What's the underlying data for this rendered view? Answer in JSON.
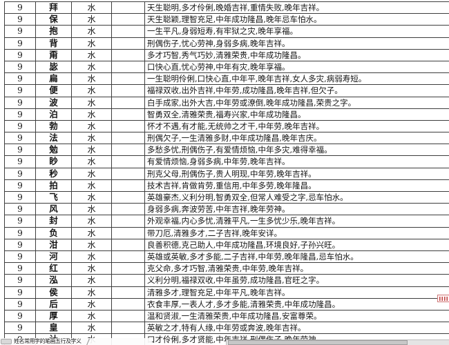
{
  "sheet": {
    "rows": [
      {
        "strokes": "9",
        "character": "拜",
        "element": "水",
        "meaning": "天生聪明,多才伶俐,晚婚吉祥,重情失败,晚年吉祥。"
      },
      {
        "strokes": "9",
        "character": "保",
        "element": "水",
        "meaning": "天生聪颖,理智充足,中年成功隆昌,晚年忌车怕水。"
      },
      {
        "strokes": "9",
        "character": "抱",
        "element": "水",
        "meaning": "一生平凡,身弱短寿,有牢狱之灾,晚年享福。"
      },
      {
        "strokes": "9",
        "character": "背",
        "element": "水",
        "meaning": "刑偶伤子,忧心劳神,身弱多病,晚年吉祥。"
      },
      {
        "strokes": "9",
        "character": "甭",
        "element": "水",
        "meaning": "多才巧智,秀气巧妙,清雅荣贵,中年成功隆昌。"
      },
      {
        "strokes": "9",
        "character": "毖",
        "element": "水",
        "meaning": "口快心直,忧心劳神,中年有灾,晚年享福。"
      },
      {
        "strokes": "9",
        "character": "扁",
        "element": "水",
        "meaning": "一生聪明伶俐,口快心直,中年平,晚年吉祥,女人多灾,病弱寿短。"
      },
      {
        "strokes": "9",
        "character": "便",
        "element": "水",
        "meaning": "福禄双收,出外吉祥,中年劳,成功隆昌,晚年吉祥,但欠子。"
      },
      {
        "strokes": "9",
        "character": "波",
        "element": "水",
        "meaning": "白手成家,出外大吉,中年劳或潦倒,晚年成功隆昌,荣贵之字。"
      },
      {
        "strokes": "9",
        "character": "泊",
        "element": "水",
        "meaning": "智勇双全,清雅荣贵,福寿兴家,中年成功隆昌。"
      },
      {
        "strokes": "9",
        "character": "勃",
        "element": "水",
        "meaning": "怀才不遇,有才能,无统帅之才干,中年劳,晚年吉祥。"
      },
      {
        "strokes": "9",
        "character": "法",
        "element": "水",
        "meaning": "刑偶欠子,一生清雅多财,中年成功隆昌,晚年吉庆。"
      },
      {
        "strokes": "9",
        "character": "勉",
        "element": "水",
        "meaning": "多愁多忧,刑偶伤子,有爱情烦恼,中年多灾,难得幸福。"
      },
      {
        "strokes": "9",
        "character": "眇",
        "element": "水",
        "meaning": "有爱情烦恼,身弱多病,中年劳,晚年吉祥。"
      },
      {
        "strokes": "9",
        "character": "秒",
        "element": "水",
        "meaning": "刑克父母,刑偶伤子,贵人明现,中年劳,晚年吉祥。"
      },
      {
        "strokes": "9",
        "character": "拍",
        "element": "水",
        "meaning": "技术吉祥,肯做肯劳,重信用,中年多劳,晚年隆昌。"
      },
      {
        "strokes": "9",
        "character": "飞",
        "element": "水",
        "meaning": "英雄豪杰,义利分明,智勇双全,但常人难受之字,忌车怕水。"
      },
      {
        "strokes": "9",
        "character": "风",
        "element": "水",
        "meaning": "身弱多病,奔波劳苦,中年吉祥,晚年劳神。"
      },
      {
        "strokes": "9",
        "character": "封",
        "element": "水",
        "meaning": "外观幸福,内心多忧,清雅平凡,一生多忧少乐,晚年吉祥。"
      },
      {
        "strokes": "9",
        "character": "负",
        "element": "水",
        "meaning": "带刀厄,清雅多才,二子吉祥,晚年安详。"
      },
      {
        "strokes": "9",
        "character": "泔",
        "element": "水",
        "meaning": "良善积德,克己助人,中年成功隆昌,环境良好,子孙兴旺。"
      },
      {
        "strokes": "9",
        "character": "河",
        "element": "水",
        "meaning": "英雄或英敏,多才多能,二子吉祥,中年劳,晚年隆昌,忌车怕水。"
      },
      {
        "strokes": "9",
        "character": "红",
        "element": "水",
        "meaning": "克父命,多才巧智,清雅荣贵,中年劳,晚年吉祥。"
      },
      {
        "strokes": "9",
        "character": "泓",
        "element": "水",
        "meaning": "义利分明,福禄双收,中年虽劳,成功隆昌,官旺之字。"
      },
      {
        "strokes": "9",
        "character": "侯",
        "element": "水",
        "meaning": "清雅多才,理智充足,中年平凡,晚年吉祥。"
      },
      {
        "strokes": "9",
        "character": "后",
        "element": "水",
        "meaning": "衣食丰厚,一表人才,多才多能,清雅荣贵,中年成功隆昌。"
      },
      {
        "strokes": "9",
        "character": "厚",
        "element": "水",
        "meaning": "温和贤淑,一生清雅荣贵,中年成功隆昌,安富尊荣。"
      },
      {
        "strokes": "9",
        "character": "皇",
        "element": "水",
        "meaning": "英敏之才,特有人缘,中年劳或奔波,晚年吉祥。"
      },
      {
        "strokes": "9",
        "character": "计",
        "element": "水",
        "meaning": "口才伶俐,多才贤能,中年吉祥,刑偶伤子,晚年劳神"
      }
    ]
  },
  "footer": {
    "sheet_tab_label": "姓名常用字的笔画五行及字义"
  },
  "colors": {
    "grid_line": "#3c3c3c",
    "annotation_red": "#c04545",
    "scrollbar_gray": "#c7c7c7"
  }
}
